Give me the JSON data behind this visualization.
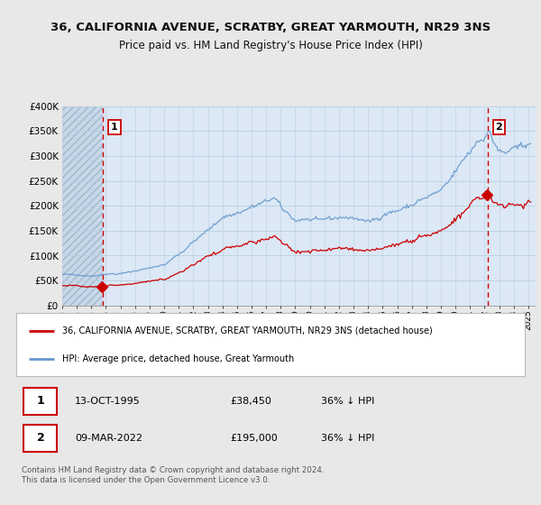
{
  "title": "36, CALIFORNIA AVENUE, SCRATBY, GREAT YARMOUTH, NR29 3NS",
  "subtitle": "Price paid vs. HM Land Registry's House Price Index (HPI)",
  "legend_label_red": "36, CALIFORNIA AVENUE, SCRATBY, GREAT YARMOUTH, NR29 3NS (detached house)",
  "legend_label_blue": "HPI: Average price, detached house, Great Yarmouth",
  "annotation1_date": "13-OCT-1995",
  "annotation1_price": "£38,450",
  "annotation1_hpi": "36% ↓ HPI",
  "annotation1_year": 1995.79,
  "annotation1_value": 38450,
  "annotation2_date": "09-MAR-2022",
  "annotation2_price": "£195,000",
  "annotation2_hpi": "36% ↓ HPI",
  "annotation2_year": 2022.19,
  "annotation2_value": 195000,
  "footnote": "Contains HM Land Registry data © Crown copyright and database right 2024.\nThis data is licensed under the Open Government Licence v3.0.",
  "ylim": [
    0,
    400000
  ],
  "xlim_start": 1993.0,
  "xlim_end": 2025.5,
  "background_color": "#e8e8e8",
  "plot_bg_color": "#dce8f5",
  "hpi_color": "#6699cc",
  "price_color": "#cc0000",
  "dashed_line_color": "#cc0000",
  "grid_color": "#b8cfe0",
  "hatch_bg_color": "#c8d8e8"
}
